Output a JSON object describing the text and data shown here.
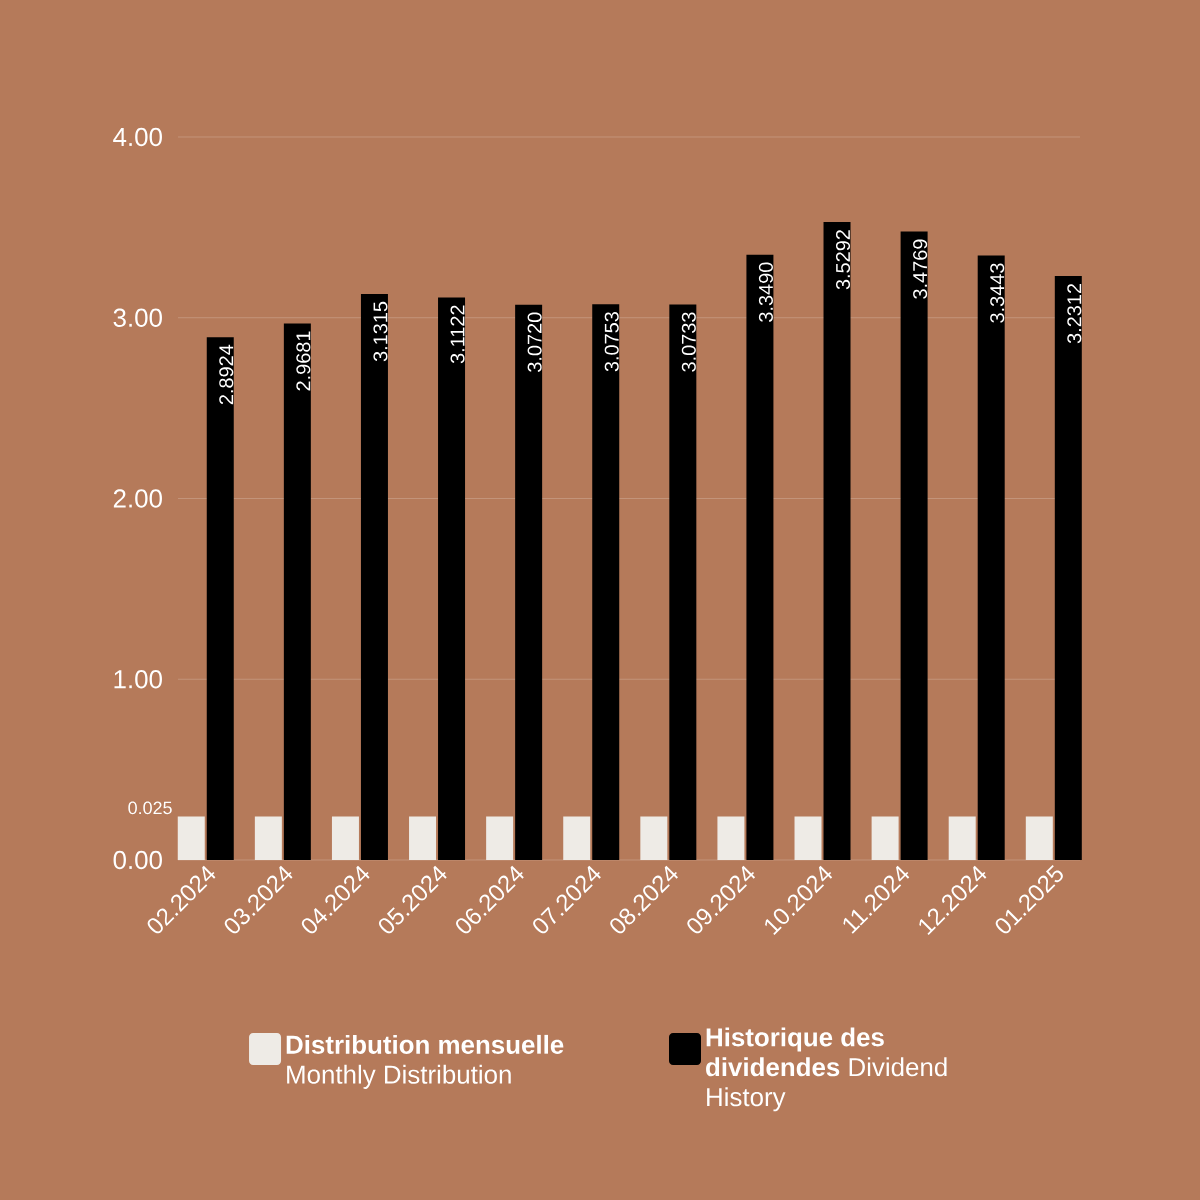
{
  "chart_data": {
    "type": "bar",
    "categories": [
      "02.2024",
      "03.2024",
      "04.2024",
      "05.2024",
      "06.2024",
      "07.2024",
      "08.2024",
      "09.2024",
      "10.2024",
      "11.2024",
      "12.2024",
      "01.2025"
    ],
    "series": [
      {
        "name": "**Distribution mensuelle** Monthly Distribution",
        "color": "#eeebe6",
        "values": [
          0.24,
          0.24,
          0.24,
          0.24,
          0.24,
          0.24,
          0.24,
          0.24,
          0.24,
          0.24,
          0.24,
          0.24
        ]
      },
      {
        "name": "**Historique des dividendes** Dividend History",
        "color": "#000000",
        "values": [
          2.8924,
          2.9681,
          3.1315,
          3.1122,
          3.072,
          3.0753,
          3.0733,
          3.349,
          3.5292,
          3.4769,
          3.3443,
          3.2312
        ],
        "value_labels": [
          "2.8924",
          "2.9681",
          "3.1315",
          "3.1122",
          "3.0720",
          "3.0753",
          "3.0733",
          "3.3490",
          "3.5292",
          "3.4769",
          "3.3443",
          "3.2312"
        ]
      }
    ],
    "ylim": [
      0,
      4
    ],
    "yticks": [
      {
        "value": 0,
        "label": "0.00"
      },
      {
        "value": 1,
        "label": "1.00"
      },
      {
        "value": 2,
        "label": "2.00"
      },
      {
        "value": 3,
        "label": "3.00"
      },
      {
        "value": 4,
        "label": "4.00"
      }
    ],
    "annotations": [
      "0.025"
    ],
    "grid": "y",
    "legend": "bottom"
  }
}
